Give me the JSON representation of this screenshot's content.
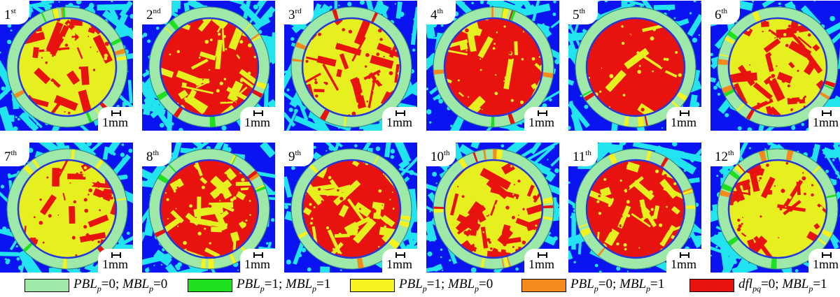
{
  "panels": [
    {
      "num": "1",
      "suffix": "st",
      "scale_label": "1mm",
      "red_cover": 0.35
    },
    {
      "num": "2",
      "suffix": "nd",
      "scale_label": "1mm",
      "red_cover": 0.5
    },
    {
      "num": "3",
      "suffix": "rd",
      "scale_label": "1mm",
      "red_cover": 0.35
    },
    {
      "num": "4",
      "suffix": "th",
      "scale_label": "1mm",
      "red_cover": 0.65
    },
    {
      "num": "5",
      "suffix": "th",
      "scale_label": "1mm",
      "red_cover": 0.95
    },
    {
      "num": "6",
      "suffix": "th",
      "scale_label": "1mm",
      "red_cover": 0.45
    },
    {
      "num": "7",
      "suffix": "th",
      "scale_label": "1mm",
      "red_cover": 0.25
    },
    {
      "num": "8",
      "suffix": "th",
      "scale_label": "1mm",
      "red_cover": 0.5
    },
    {
      "num": "9",
      "suffix": "th",
      "scale_label": "1mm",
      "red_cover": 0.5
    },
    {
      "num": "10",
      "suffix": "th",
      "scale_label": "1mm",
      "red_cover": 0.45
    },
    {
      "num": "11",
      "suffix": "th",
      "scale_label": "1mm",
      "red_cover": 0.6
    },
    {
      "num": "12",
      "suffix": "th",
      "scale_label": "1mm",
      "red_cover": 0.4
    }
  ],
  "legend": [
    {
      "name": "pbl0-mbl0",
      "color": "#9ee8a8",
      "a_var": "PBL",
      "a_sub": "p",
      "a_val": "=0; ",
      "b_var": "MBL",
      "b_sub": "p",
      "b_val": "=0"
    },
    {
      "name": "pbl1-mbl1",
      "color": "#1ee01e",
      "a_var": "PBL",
      "a_sub": "p",
      "a_val": "=1; ",
      "b_var": "MBL",
      "b_sub": "p",
      "b_val": "=1"
    },
    {
      "name": "pbl1-mbl0",
      "color": "#f6f21e",
      "a_var": "PBL",
      "a_sub": "p",
      "a_val": "=1; ",
      "b_var": "MBL",
      "b_sub": "p",
      "b_val": "=0"
    },
    {
      "name": "pbl0-mbl1",
      "color": "#f58a1c",
      "a_var": "PBL",
      "a_sub": "p",
      "a_val": "=0; ",
      "b_var": "MBL",
      "b_sub": "p",
      "b_val": "=1"
    },
    {
      "name": "dfl0-mbl1",
      "color": "#e8120e",
      "a_var": "dfl",
      "a_sub": "pq",
      "a_val": "=0; ",
      "b_var": "MBL",
      "b_sub": "p",
      "b_val": "=1"
    }
  ],
  "colors": {
    "background_blue": "#0a14f0",
    "fiber_cyan": "#22e4f0",
    "ring_green": "#9ee8a8",
    "inner_red": "#e8120e",
    "inner_yellow": "#e6f01e",
    "ring_edge": "#2838d8"
  }
}
